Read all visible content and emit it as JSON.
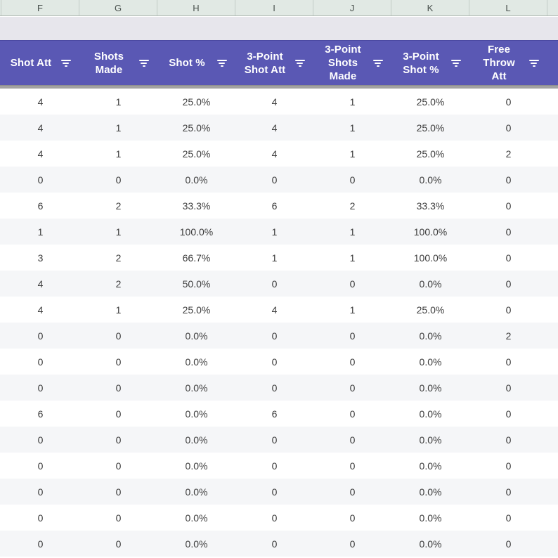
{
  "sheet_columns": {
    "letters": [
      "F",
      "G",
      "H",
      "I",
      "J",
      "K",
      "L"
    ]
  },
  "filter_header": {
    "columns": [
      {
        "label": "Shot Att",
        "lines": [
          "Shot Att"
        ]
      },
      {
        "label": "Shots Made",
        "lines": [
          "Shots",
          "Made"
        ]
      },
      {
        "label": "Shot %",
        "lines": [
          "Shot %"
        ]
      },
      {
        "label": "3-Point Shot Att",
        "lines": [
          "3-Point",
          "Shot Att"
        ]
      },
      {
        "label": "3-Point Shots Made",
        "lines": [
          "3-Point",
          "Shots",
          "Made"
        ]
      },
      {
        "label": "3-Point Shot %",
        "lines": [
          "3-Point",
          "Shot %"
        ]
      },
      {
        "label": "Free Throw Att",
        "lines": [
          "Free",
          "Throw",
          "Att"
        ]
      }
    ],
    "filter_icon": "filter-list-icon"
  },
  "table": {
    "rows": [
      [
        "4",
        "1",
        "25.0%",
        "4",
        "1",
        "25.0%",
        "0"
      ],
      [
        "4",
        "1",
        "25.0%",
        "4",
        "1",
        "25.0%",
        "0"
      ],
      [
        "4",
        "1",
        "25.0%",
        "4",
        "1",
        "25.0%",
        "2"
      ],
      [
        "0",
        "0",
        "0.0%",
        "0",
        "0",
        "0.0%",
        "0"
      ],
      [
        "6",
        "2",
        "33.3%",
        "6",
        "2",
        "33.3%",
        "0"
      ],
      [
        "1",
        "1",
        "100.0%",
        "1",
        "1",
        "100.0%",
        "0"
      ],
      [
        "3",
        "2",
        "66.7%",
        "1",
        "1",
        "100.0%",
        "0"
      ],
      [
        "4",
        "2",
        "50.0%",
        "0",
        "0",
        "0.0%",
        "0"
      ],
      [
        "4",
        "1",
        "25.0%",
        "4",
        "1",
        "25.0%",
        "0"
      ],
      [
        "0",
        "0",
        "0.0%",
        "0",
        "0",
        "0.0%",
        "2"
      ],
      [
        "0",
        "0",
        "0.0%",
        "0",
        "0",
        "0.0%",
        "0"
      ],
      [
        "0",
        "0",
        "0.0%",
        "0",
        "0",
        "0.0%",
        "0"
      ],
      [
        "6",
        "0",
        "0.0%",
        "6",
        "0",
        "0.0%",
        "0"
      ],
      [
        "0",
        "0",
        "0.0%",
        "0",
        "0",
        "0.0%",
        "0"
      ],
      [
        "0",
        "0",
        "0.0%",
        "0",
        "0",
        "0.0%",
        "0"
      ],
      [
        "0",
        "0",
        "0.0%",
        "0",
        "0",
        "0.0%",
        "0"
      ],
      [
        "0",
        "0",
        "0.0%",
        "0",
        "0",
        "0.0%",
        "0"
      ],
      [
        "0",
        "0",
        "0.0%",
        "0",
        "0",
        "0.0%",
        "0"
      ]
    ]
  },
  "colors": {
    "filter_header_bg": "#5a58b4",
    "filter_header_text": "#ffffff",
    "column_letter_band_bg": "#e1e9e4",
    "gap_band_bg": "#e7e6ec",
    "divider": "#a2a2a2",
    "row_alt_bg": "#f5f6f8",
    "data_text": "#3c3c3c"
  }
}
